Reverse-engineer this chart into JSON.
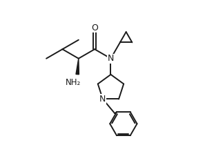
{
  "bg_color": "#ffffff",
  "line_color": "#1a1a1a",
  "line_width": 1.4,
  "font_size": 8.5,
  "fig_width": 3.1,
  "fig_height": 2.36,
  "dpi": 100,
  "xlim": [
    0.0,
    8.5
  ],
  "ylim": [
    -1.2,
    6.2
  ]
}
